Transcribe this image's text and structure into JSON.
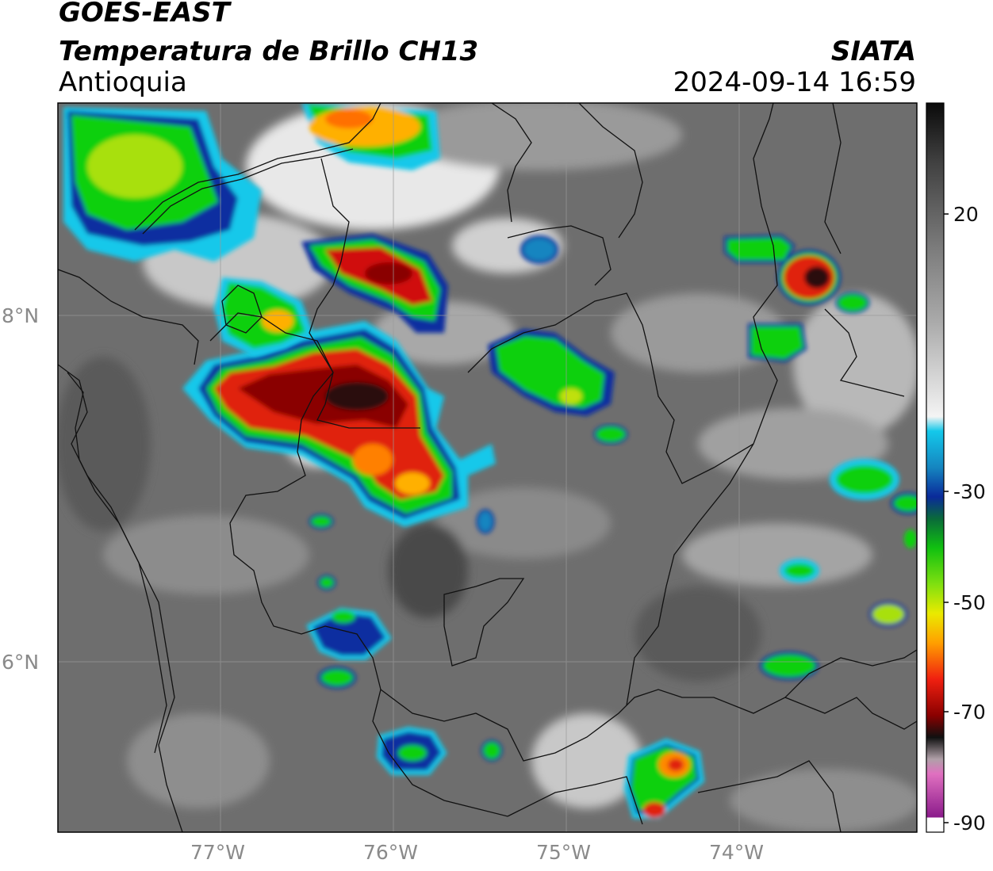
{
  "header": {
    "satellite": "GOES-EAST",
    "product": "Temperatura de Brillo CH13",
    "region": "Antioquia",
    "brand": "SIATA",
    "timestamp": "2024-09-14 16:59"
  },
  "axes": {
    "lat_labels": [
      "8°N",
      "6°N"
    ],
    "lon_labels": [
      "77°W",
      "76°W",
      "75°W",
      "74°W"
    ]
  },
  "colorbar": {
    "ticks": [
      "20",
      "-30",
      "-50",
      "-70",
      "-90"
    ],
    "colors": {
      "dark": "#111111",
      "gray": "#8c8c8c",
      "white": "#f2f2f2",
      "cyan": "#12c4e8",
      "blue": "#0a2fa0",
      "green": "#10d010",
      "yellow": "#e8e800",
      "orange": "#ff8a00",
      "red": "#e01010",
      "darkred": "#6a0000",
      "pink": "#e070c0",
      "purple": "#8a1a8a"
    }
  },
  "map_colors": {
    "background": "#6e6e6e",
    "border": "#111111",
    "gridline": "#9a9a9a"
  }
}
